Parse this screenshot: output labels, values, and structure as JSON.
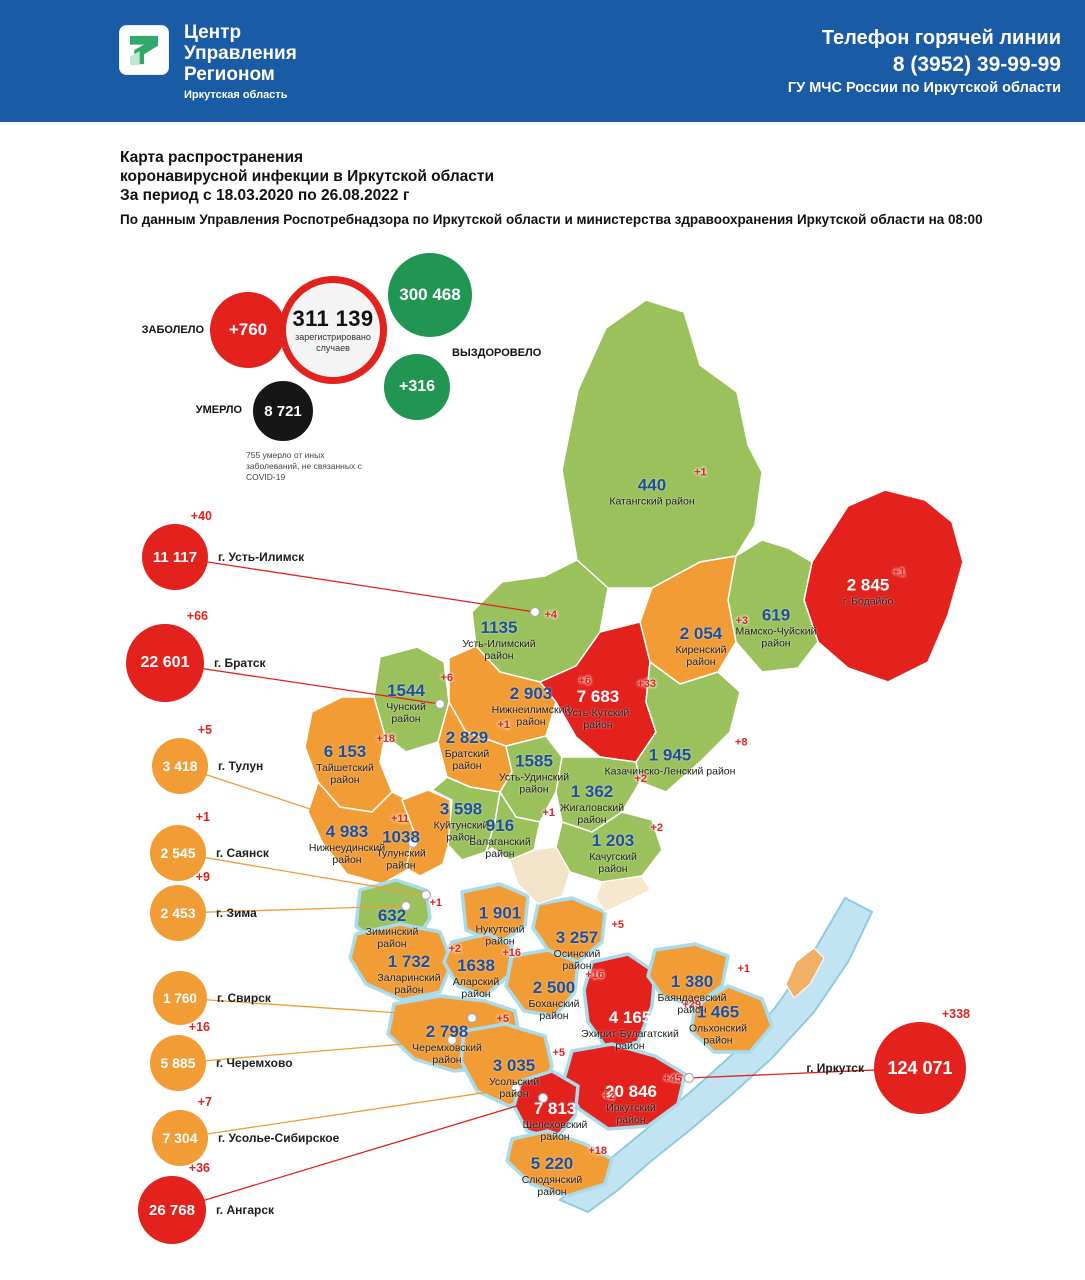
{
  "header": {
    "logo": {
      "line1": "Центр",
      "line2": "Управления",
      "line3": "Регионом",
      "subtitle": "Иркутская область"
    },
    "hotline": {
      "title": "Телефон горячей линии",
      "phone": "8 (3952) 39-99-99",
      "org": "ГУ МЧС России по Иркутской области"
    }
  },
  "title": {
    "line1": "Карта распространения",
    "line2": "коронавирусной инфекции в Иркутской области",
    "line3": "За период с 18.03.2020 по 26.08.2022 г",
    "source": "По данным Управления Роспотребнадзора по Иркутской области и министерства здравоохранения Иркутской области на 08:00"
  },
  "stats": {
    "sick": {
      "label": "ЗАБОЛЕЛО",
      "delta": "+760"
    },
    "registered": {
      "value": "311 139",
      "label1": "зарегистрировано",
      "label2": "случаев"
    },
    "recovered": {
      "value": "300 468",
      "label": "ВЫЗДОРОВЕЛО",
      "delta": "+316"
    },
    "died": {
      "value": "8 721",
      "label": "УМЕРЛО",
      "note": "755 умерло от иных заболеваний, не связанных с COVID-19"
    }
  },
  "colors": {
    "header_blue": "#1a5ba6",
    "green": "#9bc15c",
    "orange": "#f29c36",
    "red": "#e3211d",
    "stat_green": "#219653",
    "value_blue": "#1d4f9a",
    "halo": "#a8dcec"
  },
  "map": {
    "districts": [
      {
        "id": "katangsky",
        "name": "Катангский район",
        "value": "440",
        "delta": "+1",
        "level": "green"
      },
      {
        "id": "bodaibinsky",
        "name": "г. Бодайбо",
        "value": "2 845",
        "delta": "+1",
        "level": "red"
      },
      {
        "id": "mamsko_chuysky",
        "name": "Мамско-Чуйский район",
        "value": "619",
        "delta": "",
        "level": "green"
      },
      {
        "id": "kirensky",
        "name": "Киренский район",
        "value": "2 054",
        "delta": "+3",
        "level": "orange"
      },
      {
        "id": "ust_ilimsky",
        "name": "Усть-Илимский район",
        "value": "1135",
        "delta": "+4",
        "level": "green"
      },
      {
        "id": "chunsky",
        "name": "Чунский район",
        "value": "1544",
        "delta": "+6",
        "level": "green"
      },
      {
        "id": "nizhneilimsky",
        "name": "Нижнеилимский район",
        "value": "2 903",
        "delta": "+6",
        "level": "orange"
      },
      {
        "id": "ust_kutsky",
        "name": "Усть-Кутский район",
        "value": "7 683",
        "delta": "+33",
        "level": "red"
      },
      {
        "id": "kazachinsko_lensky",
        "name": "Казачинско-Ленский район",
        "value": "1 945",
        "delta": "+8",
        "level": "green"
      },
      {
        "id": "taishetsky",
        "name": "Тайшетский район",
        "value": "6 153",
        "delta": "+18",
        "level": "orange"
      },
      {
        "id": "bratsky",
        "name": "Братский район",
        "value": "2 829",
        "delta": "+1",
        "level": "orange"
      },
      {
        "id": "ust_udinsky",
        "name": "Усть-Удинский район",
        "value": "1585",
        "delta": "",
        "level": "green"
      },
      {
        "id": "zhigalovsky",
        "name": "Жигаловский район",
        "value": "1 362",
        "delta": "+2",
        "level": "green"
      },
      {
        "id": "nizhneudinsky",
        "name": "Нижнеудинский район",
        "value": "4 983",
        "delta": "+11",
        "level": "orange"
      },
      {
        "id": "tulunsky",
        "name": "Тулунский район",
        "value": "1038",
        "delta": "",
        "level": "orange"
      },
      {
        "id": "kuytunsky",
        "name": "Куйтунский район",
        "value": "3 598",
        "delta": "",
        "level": "green"
      },
      {
        "id": "balagansky",
        "name": "Балаганский район",
        "value": "916",
        "delta": "+1",
        "level": "green"
      },
      {
        "id": "kachugsky",
        "name": "Качугский район",
        "value": "1 203",
        "delta": "+2",
        "level": "green"
      },
      {
        "id": "ziminsky",
        "name": "Зиминский район",
        "value": "632",
        "delta": "+1",
        "level": "green"
      },
      {
        "id": "nukutsky",
        "name": "Нукутский район",
        "value": "1 901",
        "delta": "",
        "level": "orange"
      },
      {
        "id": "osinsky",
        "name": "Осинский район",
        "value": "3 257",
        "delta": "+5",
        "level": "orange"
      },
      {
        "id": "zalarinsky",
        "name": "Заларинский район",
        "value": "1 732",
        "delta": "+2",
        "level": "orange"
      },
      {
        "id": "alarsky",
        "name": "Аларский район",
        "value": "1638",
        "delta": "+16",
        "level": "orange"
      },
      {
        "id": "bokhansky",
        "name": "Боханский район",
        "value": "2 500",
        "delta": "+16",
        "level": "orange"
      },
      {
        "id": "ekhirit_bulagatsky",
        "name": "Эхирит-Булагатский район",
        "value": "4 165",
        "delta": "+29",
        "level": "red"
      },
      {
        "id": "bayandaevsky",
        "name": "Баяндаевский район",
        "value": "1 380",
        "delta": "+1",
        "level": "orange"
      },
      {
        "id": "olkhonsky",
        "name": "Ольхонский район",
        "value": "1 465",
        "delta": "",
        "level": "orange"
      },
      {
        "id": "cheremkhovsky",
        "name": "Черемховский район",
        "value": "2 798",
        "delta": "+5",
        "level": "orange"
      },
      {
        "id": "usolsky",
        "name": "Усольский район",
        "value": "3 035",
        "delta": "+5",
        "level": "orange"
      },
      {
        "id": "irkutsky",
        "name": "Иркутский район",
        "value": "20 846",
        "delta": "+45",
        "level": "red"
      },
      {
        "id": "shelekhovsky",
        "name": "Шелеховский район",
        "value": "7 813",
        "delta": "+2",
        "level": "red"
      },
      {
        "id": "slyudyansky",
        "name": "Слюдянский район",
        "value": "5 220",
        "delta": "+18",
        "level": "orange"
      }
    ],
    "cities": [
      {
        "id": "ust_ilimsk",
        "name": "г. Усть-Илимск",
        "value": "11 117",
        "delta": "+40",
        "level": "red"
      },
      {
        "id": "bratsk",
        "name": "г. Братск",
        "value": "22 601",
        "delta": "+66",
        "level": "red"
      },
      {
        "id": "tulun",
        "name": "г. Тулун",
        "value": "3 418",
        "delta": "+5",
        "level": "orange"
      },
      {
        "id": "sayansk",
        "name": "г. Саянск",
        "value": "2 545",
        "delta": "+1",
        "level": "orange"
      },
      {
        "id": "zima",
        "name": "г. Зима",
        "value": "2 453",
        "delta": "+9",
        "level": "orange"
      },
      {
        "id": "svirsk",
        "name": "г. Свирск",
        "value": "1 760",
        "delta": "",
        "level": "orange"
      },
      {
        "id": "cheremkhovo",
        "name": "г. Черемхово",
        "value": "5 885",
        "delta": "+16",
        "level": "orange"
      },
      {
        "id": "usolye_sibirskoye",
        "name": "г. Усолье-Сибирское",
        "value": "7 304",
        "delta": "+7",
        "level": "orange"
      },
      {
        "id": "angarsk",
        "name": "г. Ангарск",
        "value": "26 768",
        "delta": "+36",
        "level": "red"
      },
      {
        "id": "irkutsk",
        "name": "г. Иркутск",
        "value": "124 071",
        "delta": "+338",
        "level": "red"
      }
    ]
  }
}
